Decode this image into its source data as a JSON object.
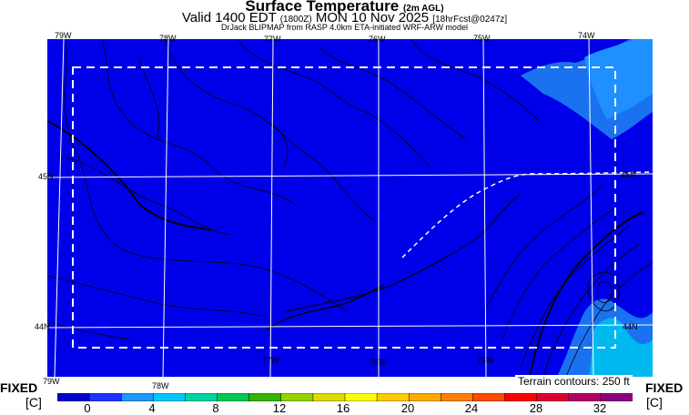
{
  "title": {
    "main": "Surface Temperature",
    "main_sub": "(2m AGL)",
    "valid_prefix": "Valid 1400 EDT",
    "valid_utc": "(1800Z)",
    "valid_date": "MON 10 Nov 2025",
    "forecast": "[18hrFcst@0247z]",
    "model": "DrJack BLIPMAP from RASP 4.0km ETA-initiated WRF-ARW model"
  },
  "map": {
    "lon_labels_top": [
      "79W",
      "78W",
      "77W",
      "76W",
      "75W",
      "74W"
    ],
    "lon_labels_bottom": [
      "79W",
      "78W",
      "77W",
      "76W",
      "75W"
    ],
    "lat_labels_left": [
      "45N",
      "44N"
    ],
    "lat_labels_right": [
      "45N",
      "44N"
    ],
    "terrain_note": "Terrain contours: 250 ft",
    "colors": {
      "field": "#0000e8",
      "warm": "#1a90f0",
      "warmer": "#00b8f0",
      "contour": "#000000",
      "grid": "#ffffff"
    }
  },
  "colorbar": {
    "left_label": "FIXED",
    "right_label": "FIXED",
    "unit": "[C]",
    "ticks": [
      "0",
      "4",
      "8",
      "12",
      "16",
      "20",
      "24",
      "28",
      "32"
    ],
    "colors": [
      "#0000cc",
      "#1e32ff",
      "#1e96ff",
      "#00c8ff",
      "#00d2a0",
      "#00c850",
      "#32b400",
      "#96d200",
      "#dcdc00",
      "#ffff00",
      "#ffcc00",
      "#ffaa00",
      "#ff8000",
      "#ff4b00",
      "#ff0000",
      "#dc0032",
      "#b40064",
      "#8c0082"
    ]
  }
}
